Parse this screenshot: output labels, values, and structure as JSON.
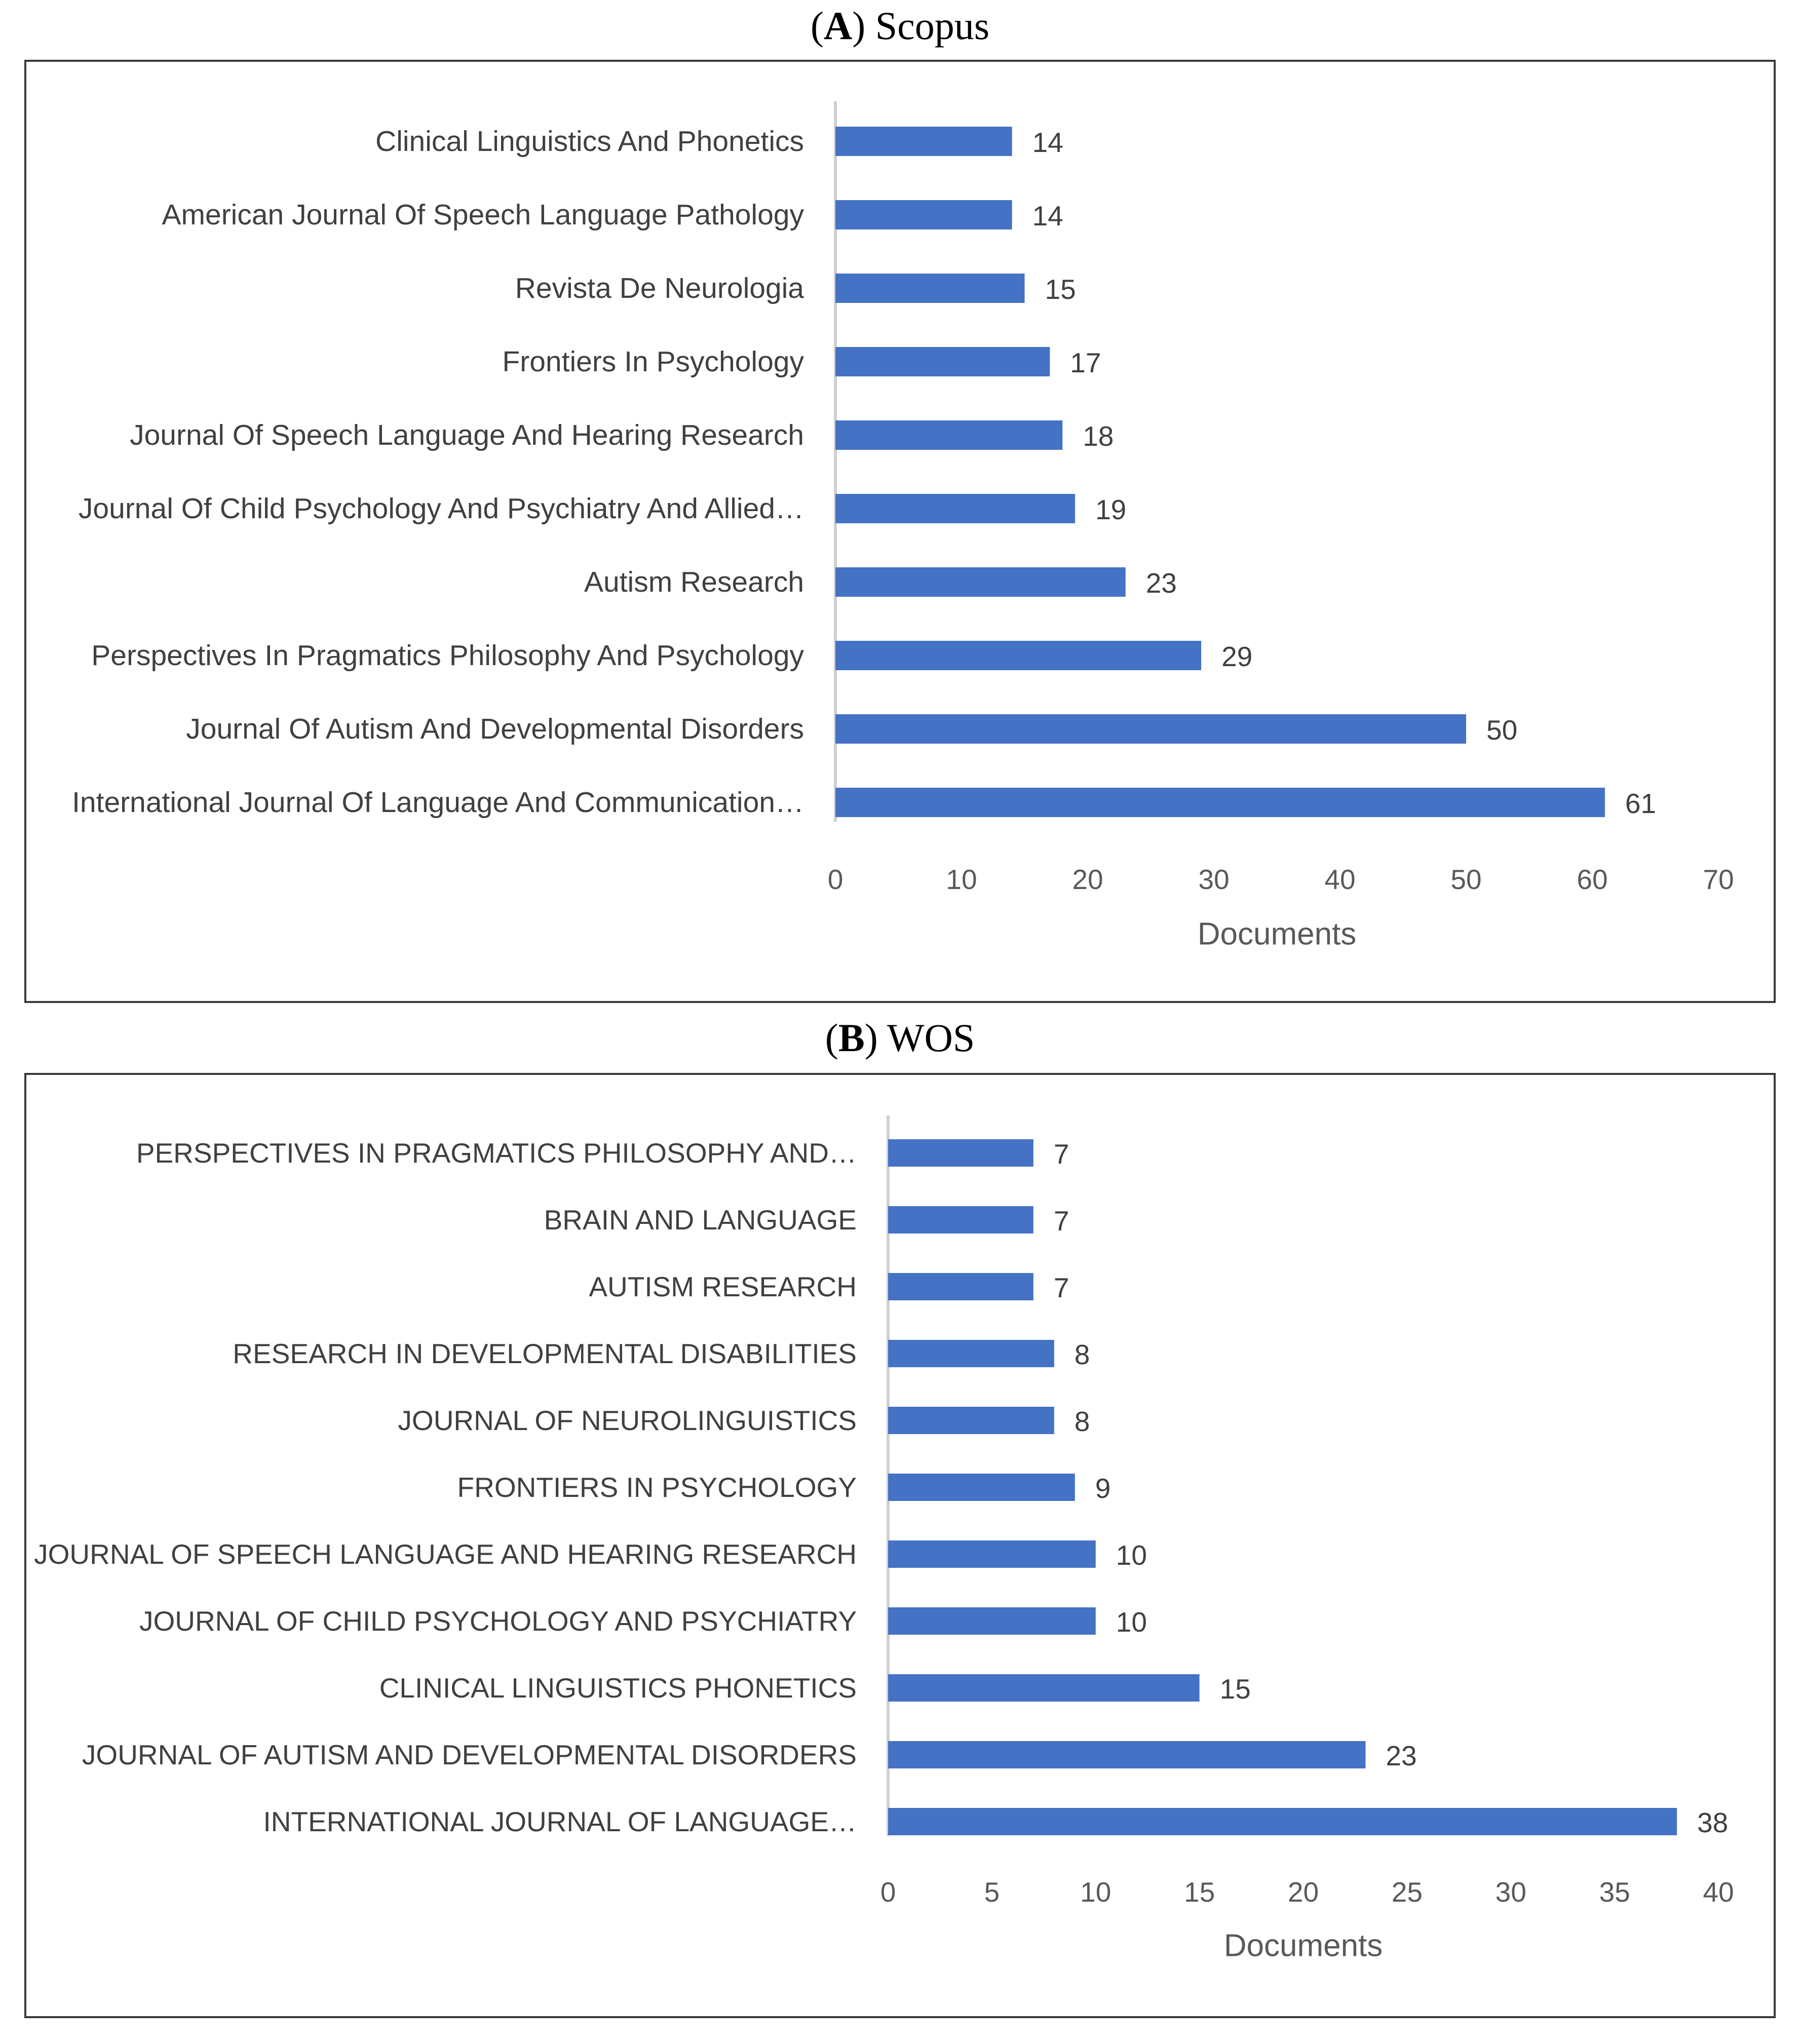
{
  "chart_data": [
    {
      "type": "bar",
      "orientation": "horizontal",
      "panel_letter": "A",
      "panel_name": "Scopus",
      "title": "(A) Scopus",
      "xlabel": "Documents",
      "ylabel": "",
      "xlim": [
        0,
        70
      ],
      "xticks": [
        0,
        10,
        20,
        30,
        40,
        50,
        60,
        70
      ],
      "grid": false,
      "bar_color": "#4472C4",
      "categories": [
        "Clinical Linguistics And Phonetics",
        "American Journal Of Speech Language Pathology",
        "Revista De Neurologia",
        "Frontiers In Psychology",
        "Journal Of Speech Language And Hearing Research",
        "Journal Of Child Psychology And Psychiatry And Allied…",
        "Autism Research",
        "Perspectives In Pragmatics Philosophy And Psychology",
        "Journal Of Autism And Developmental Disorders",
        "International Journal Of Language And Communication…"
      ],
      "values": [
        14,
        14,
        15,
        17,
        18,
        19,
        23,
        29,
        50,
        61
      ]
    },
    {
      "type": "bar",
      "orientation": "horizontal",
      "panel_letter": "B",
      "panel_name": "WOS",
      "title": "(B) WOS",
      "xlabel": "Documents",
      "ylabel": "",
      "xlim": [
        0,
        40
      ],
      "xticks": [
        0,
        5,
        10,
        15,
        20,
        25,
        30,
        35,
        40
      ],
      "grid": false,
      "bar_color": "#4472C4",
      "categories": [
        "PERSPECTIVES IN PRAGMATICS PHILOSOPHY AND…",
        "BRAIN AND LANGUAGE",
        "AUTISM RESEARCH",
        "RESEARCH IN DEVELOPMENTAL DISABILITIES",
        "JOURNAL OF NEUROLINGUISTICS",
        "FRONTIERS IN PSYCHOLOGY",
        "JOURNAL OF SPEECH LANGUAGE AND HEARING RESEARCH",
        "JOURNAL OF CHILD PSYCHOLOGY AND PSYCHIATRY",
        "CLINICAL LINGUISTICS PHONETICS",
        "JOURNAL OF AUTISM AND DEVELOPMENTAL DISORDERS",
        "INTERNATIONAL JOURNAL OF LANGUAGE…"
      ],
      "values": [
        7,
        7,
        7,
        8,
        8,
        9,
        10,
        10,
        15,
        23,
        38
      ]
    }
  ]
}
